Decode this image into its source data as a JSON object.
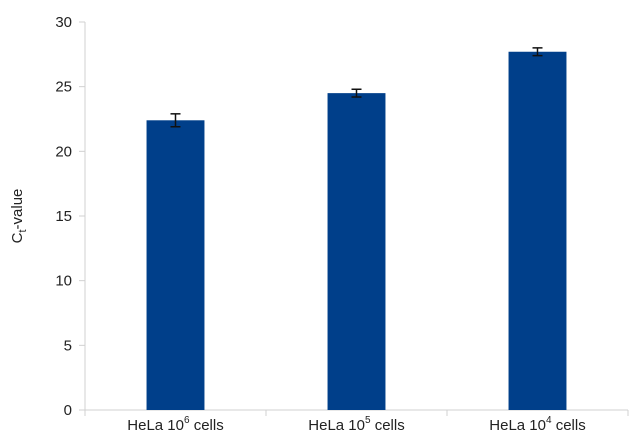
{
  "chart_data": {
    "type": "bar",
    "title": "",
    "xlabel": "",
    "ylabel": {
      "main": "C",
      "subscript": "t",
      "suffix": "-value"
    },
    "ylim": [
      0,
      30
    ],
    "yticks": [
      0,
      5,
      10,
      15,
      20,
      25,
      30
    ],
    "grid": false,
    "legend": "none",
    "bar_color": "#003f8a",
    "categories": [
      {
        "prefix": "HeLa 10",
        "exponent": "6",
        "suffix": " cells"
      },
      {
        "prefix": "HeLa 10",
        "exponent": "5",
        "suffix": " cells"
      },
      {
        "prefix": "HeLa 10",
        "exponent": "4",
        "suffix": " cells"
      }
    ],
    "values": [
      22.4,
      24.5,
      27.7
    ],
    "error": [
      0.5,
      0.3,
      0.3
    ]
  }
}
